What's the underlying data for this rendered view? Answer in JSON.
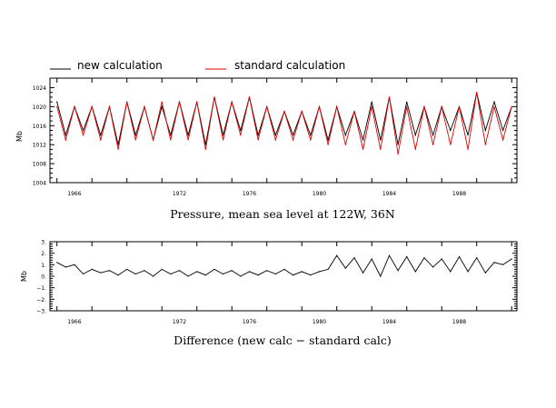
{
  "legend": {
    "new_label": "new calculation",
    "standard_label": "standard calculation",
    "new_color": "#000000",
    "standard_color": "#e00000"
  },
  "chart_data": [
    {
      "type": "line",
      "title": "Pressure, mean sea level at 122W, 36N",
      "ylabel": "Mb",
      "xlabel": "",
      "xlim": [
        1964.6,
        1991.3
      ],
      "ylim": [
        1004,
        1026
      ],
      "yticks": [
        1004,
        1008,
        1012,
        1016,
        1020,
        1024
      ],
      "ytick_labels": [
        "1004",
        "1008",
        "1012",
        "1016",
        "1020",
        "1024"
      ],
      "xticks": [
        1966,
        1972,
        1976,
        1980,
        1984,
        1988
      ],
      "xtick_labels": [
        "1966",
        "1972",
        "1976",
        "1980",
        "1984",
        "1988"
      ],
      "grid": false,
      "series": [
        {
          "name": "new calculation",
          "color": "#000000",
          "x": [
            1965.0,
            1965.5,
            1966.0,
            1966.5,
            1967.0,
            1967.5,
            1968.0,
            1968.5,
            1969.0,
            1969.5,
            1970.0,
            1970.5,
            1971.0,
            1971.5,
            1972.0,
            1972.5,
            1973.0,
            1973.5,
            1974.0,
            1974.5,
            1975.0,
            1975.5,
            1976.0,
            1976.5,
            1977.0,
            1977.5,
            1978.0,
            1978.5,
            1979.0,
            1979.5,
            1980.0,
            1980.5,
            1981.0,
            1981.5,
            1982.0,
            1982.5,
            1983.0,
            1983.5,
            1984.0,
            1984.5,
            1985.0,
            1985.5,
            1986.0,
            1986.5,
            1987.0,
            1987.5,
            1988.0,
            1988.5,
            1989.0,
            1989.5,
            1990.0,
            1990.5,
            1991.0
          ],
          "values": [
            1021,
            1014,
            1020,
            1015,
            1020,
            1014,
            1020,
            1012,
            1021,
            1014,
            1020,
            1013,
            1020,
            1014,
            1021,
            1014,
            1021,
            1012,
            1022,
            1014,
            1021,
            1015,
            1022,
            1014,
            1020,
            1014,
            1019,
            1014,
            1019,
            1014,
            1020,
            1013,
            1020,
            1014,
            1019,
            1013,
            1021,
            1013,
            1022,
            1012,
            1021,
            1014,
            1020,
            1014,
            1020,
            1015,
            1020,
            1014,
            1023,
            1015,
            1021,
            1015,
            1020
          ]
        },
        {
          "name": "standard calculation",
          "color": "#e00000",
          "x": [
            1965.0,
            1965.5,
            1966.0,
            1966.5,
            1967.0,
            1967.5,
            1968.0,
            1968.5,
            1969.0,
            1969.5,
            1970.0,
            1970.5,
            1971.0,
            1971.5,
            1972.0,
            1972.5,
            1973.0,
            1973.5,
            1974.0,
            1974.5,
            1975.0,
            1975.5,
            1976.0,
            1976.5,
            1977.0,
            1977.5,
            1978.0,
            1978.5,
            1979.0,
            1979.5,
            1980.0,
            1980.5,
            1981.0,
            1981.5,
            1982.0,
            1982.5,
            1983.0,
            1983.5,
            1984.0,
            1984.5,
            1985.0,
            1985.5,
            1986.0,
            1986.5,
            1987.0,
            1987.5,
            1988.0,
            1988.5,
            1989.0,
            1989.5,
            1990.0,
            1990.5,
            1991.0
          ],
          "values": [
            1020,
            1013,
            1020,
            1014,
            1020,
            1013,
            1020,
            1011,
            1021,
            1013,
            1020,
            1013,
            1021,
            1013,
            1021,
            1013,
            1021,
            1011,
            1022,
            1013,
            1021,
            1014,
            1022,
            1013,
            1020,
            1013,
            1019,
            1013,
            1019,
            1013,
            1020,
            1012,
            1020,
            1012,
            1019,
            1011,
            1020,
            1011,
            1022,
            1010,
            1020,
            1011,
            1020,
            1012,
            1020,
            1012,
            1020,
            1011,
            1023,
            1012,
            1020,
            1013,
            1020
          ]
        }
      ]
    },
    {
      "type": "line",
      "title": "Difference (new calc − standard calc)",
      "ylabel": "Mb",
      "xlabel": "",
      "xlim": [
        1964.6,
        1991.3
      ],
      "ylim": [
        -3,
        3
      ],
      "yticks": [
        -3,
        -2,
        -1,
        0,
        1,
        2,
        3
      ],
      "ytick_labels": [
        "−3.",
        "−2.",
        "−1.",
        "0.",
        "1.",
        "2.",
        "3."
      ],
      "xticks": [
        1966,
        1972,
        1976,
        1980,
        1984,
        1988
      ],
      "xtick_labels": [
        "1966",
        "1972",
        "1976",
        "1980",
        "1984",
        "1988"
      ],
      "grid": false,
      "series": [
        {
          "name": "",
          "color": "#000000",
          "x": [
            1965.0,
            1965.5,
            1966.0,
            1966.5,
            1967.0,
            1967.5,
            1968.0,
            1968.5,
            1969.0,
            1969.5,
            1970.0,
            1970.5,
            1971.0,
            1971.5,
            1972.0,
            1972.5,
            1973.0,
            1973.5,
            1974.0,
            1974.5,
            1975.0,
            1975.5,
            1976.0,
            1976.5,
            1977.0,
            1977.5,
            1978.0,
            1978.5,
            1979.0,
            1979.5,
            1980.0,
            1980.5,
            1981.0,
            1981.5,
            1982.0,
            1982.5,
            1983.0,
            1983.5,
            1984.0,
            1984.5,
            1985.0,
            1985.5,
            1986.0,
            1986.5,
            1987.0,
            1987.5,
            1988.0,
            1988.5,
            1989.0,
            1989.5,
            1990.0,
            1990.5,
            1991.0
          ],
          "values": [
            1.2,
            0.8,
            1.0,
            0.2,
            0.6,
            0.3,
            0.5,
            0.1,
            0.6,
            0.2,
            0.5,
            0.0,
            0.6,
            0.2,
            0.5,
            0.0,
            0.4,
            0.1,
            0.6,
            0.2,
            0.5,
            0.0,
            0.4,
            0.1,
            0.5,
            0.2,
            0.6,
            0.1,
            0.4,
            0.1,
            0.4,
            0.6,
            1.8,
            0.7,
            1.6,
            0.3,
            1.5,
            0.0,
            1.8,
            0.5,
            1.7,
            0.4,
            1.6,
            0.8,
            1.5,
            0.4,
            1.7,
            0.4,
            1.6,
            0.3,
            1.2,
            1.0,
            1.5
          ]
        }
      ]
    }
  ]
}
